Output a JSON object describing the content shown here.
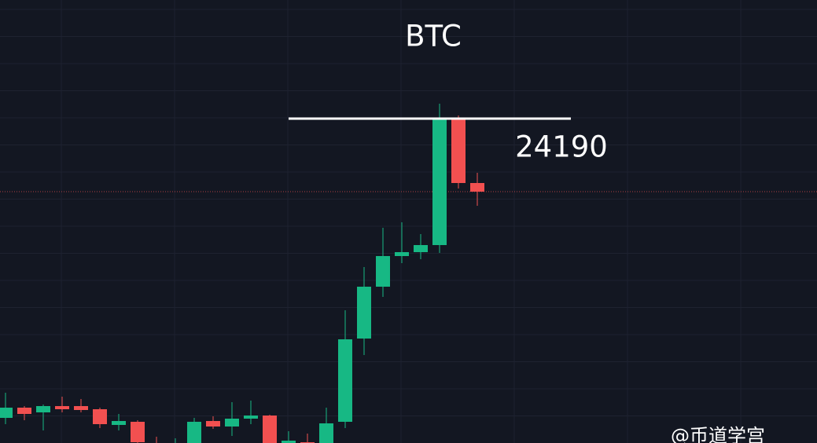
{
  "chart_data": {
    "type": "candlestick",
    "title": "BTC",
    "open": [
      22666,
      22718,
      22694,
      22726,
      22726,
      22710,
      22630,
      22646,
      22534,
      22514,
      22522,
      22650,
      22622,
      22662,
      22678,
      22534,
      22542,
      22530,
      22646,
      23070,
      23334,
      23490,
      23510,
      23546,
      24190,
      23862
    ],
    "high": [
      22794,
      22726,
      22734,
      22774,
      22762,
      22718,
      22686,
      22654,
      22570,
      22562,
      22666,
      22674,
      22746,
      22754,
      22682,
      22598,
      22586,
      22718,
      23214,
      23434,
      23634,
      23662,
      23602,
      24266,
      24206,
      23914
    ],
    "low": [
      22634,
      22654,
      22602,
      22694,
      22694,
      22614,
      22602,
      22514,
      22474,
      22474,
      22506,
      22610,
      22574,
      22634,
      22514,
      22514,
      22514,
      22514,
      22614,
      22986,
      23282,
      23454,
      23474,
      23506,
      23834,
      23746
    ],
    "close": [
      22718,
      22686,
      22726,
      22710,
      22706,
      22634,
      22650,
      22542,
      22494,
      22534,
      22646,
      22622,
      22662,
      22678,
      22530,
      22550,
      22530,
      22638,
      23066,
      23334,
      23490,
      23510,
      23546,
      24190,
      23862,
      23818
    ],
    "up_color": "#17b884",
    "down_color": "#f25050",
    "ylim": [
      22538,
      24794
    ],
    "level": 24190,
    "last_price": 23818,
    "watermark": "@币道学宫"
  }
}
